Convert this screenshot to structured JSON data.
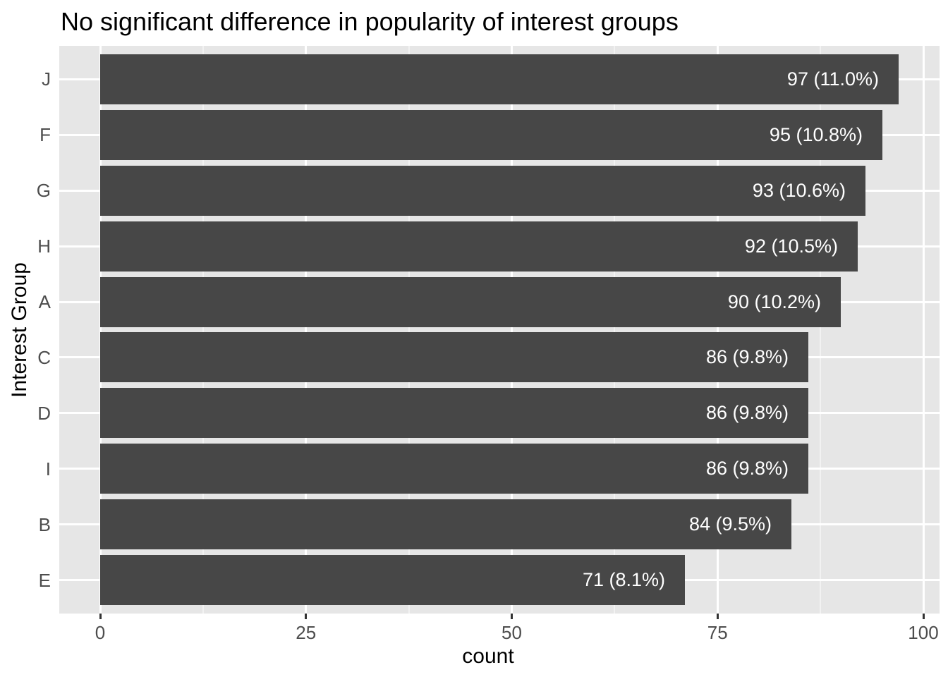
{
  "chart_data": {
    "type": "bar",
    "orientation": "horizontal",
    "title": "No significant difference in popularity of interest groups",
    "xlabel": "count",
    "ylabel": "Interest Group",
    "categories": [
      "J",
      "F",
      "G",
      "H",
      "A",
      "C",
      "D",
      "I",
      "B",
      "E"
    ],
    "values": [
      97,
      95,
      93,
      92,
      90,
      86,
      86,
      86,
      84,
      71
    ],
    "bar_labels": [
      "97 (11.0%)",
      "95 (10.8%)",
      "93 (10.6%)",
      "92 (10.5%)",
      "90 (10.2%)",
      "86 (9.8%)",
      "86 (9.8%)",
      "86 (9.8%)",
      "84 (9.5%)",
      "71 (8.1%)"
    ],
    "x_tick_labels": [
      "0",
      "25",
      "50",
      "75",
      "100"
    ],
    "x_tick_values": [
      0,
      25,
      50,
      75,
      100
    ],
    "xlim": [
      0,
      100
    ],
    "grid": "on",
    "legend": "none",
    "colors": {
      "bar_fill": "#474747",
      "panel_background": "#E6E6E6",
      "grid_major": "#FFFFFF",
      "grid_minor": "#F2F2F2",
      "axis_tick_text": "#4D4D4D",
      "axis_title_text": "#000000",
      "chart_title_text": "#000000",
      "bar_label_text": "#FFFFFF",
      "tick_mark": "#333333",
      "page_background": "#FFFFFF"
    }
  }
}
